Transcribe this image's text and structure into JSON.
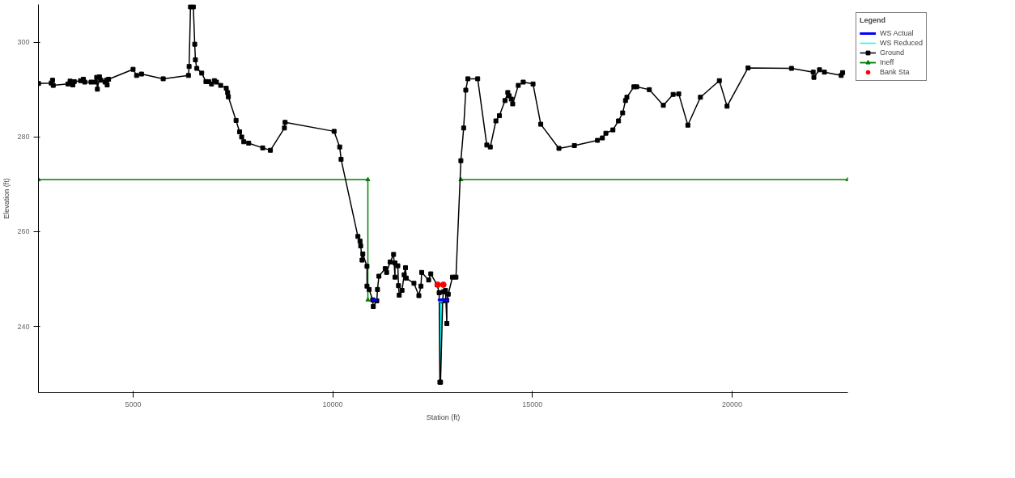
{
  "chart_data": {
    "type": "line",
    "xlabel": "Station (ft)",
    "ylabel": "Elevation (ft)",
    "legend_title": "Legend",
    "legend": "top right",
    "grid": false,
    "xlim": [
      2630,
      22900
    ],
    "ylim": [
      226,
      308
    ],
    "xticks": [
      5000,
      10000,
      15000,
      20000
    ],
    "yticks": [
      240,
      260,
      280,
      300
    ],
    "series": [
      {
        "name": "WS Actual",
        "type": "line",
        "color": "#0000ff",
        "marker": "none",
        "x": [
          10970,
          11110,
          null,
          12630,
          12910
        ],
        "values": [
          245.6,
          245.6,
          null,
          245.6,
          245.6
        ]
      },
      {
        "name": "WS Reduced",
        "type": "line",
        "color": "#00ffff",
        "marker": "none",
        "x": [
          12665,
          12683,
          12700,
          12753
        ],
        "values": [
          245.2,
          245.2,
          245.2,
          245.2
        ],
        "lower": [
          245.2,
          228.2,
          228.2,
          245.2
        ],
        "upper": [
          245.2,
          245.2,
          245.2,
          245.2
        ]
      },
      {
        "name": "Ground",
        "color": "#000000",
        "marker": "square",
        "x": [
          2632,
          2950,
          2983,
          3000,
          3369,
          3422,
          3492,
          3527,
          3685,
          3755,
          3790,
          3948,
          4053,
          4088,
          4106,
          4158,
          4193,
          4299,
          4334,
          4351,
          4386,
          5000,
          5088,
          5210,
          5754,
          6386,
          6403,
          6438,
          6509,
          6544,
          6561,
          6596,
          6719,
          6824,
          6895,
          6965,
          7035,
          7088,
          7193,
          7333,
          7368,
          7386,
          7579,
          7667,
          7719,
          7772,
          7895,
          8246,
          8439,
          8790,
          8807,
          10034,
          10174,
          10209,
          10630,
          10683,
          10700,
          10735,
          10753,
          10858,
          10858,
          10911,
          11000,
          11016,
          11104,
          11121,
          11156,
          11314,
          11349,
          11437,
          11524,
          11559,
          11559,
          11630,
          11647,
          11665,
          11735,
          11788,
          11823,
          11840,
          12034,
          12157,
          12209,
          12227,
          12402,
          12455,
          12613,
          12665,
          12683,
          12700,
          12753,
          12770,
          12823,
          12858,
          12858,
          12893,
          12998,
          13086,
          13209,
          13279,
          13332,
          13384,
          13630,
          13858,
          13946,
          14086,
          14174,
          14314,
          14384,
          14419,
          14472,
          14507,
          14647,
          14770,
          15016,
          15209,
          15665,
          16051,
          16630,
          16753,
          16840,
          17016,
          17156,
          17261,
          17331,
          17366,
          17542,
          17612,
          17928,
          18279,
          18525,
          18665,
          18893,
          19208,
          19682,
          19875,
          20401,
          21488,
          22032,
          22049,
          22190,
          22313,
          22734,
          22769
        ],
        "values": [
          291.3,
          291.4,
          292.0,
          290.9,
          291.2,
          291.8,
          291.0,
          291.7,
          291.9,
          292.2,
          291.6,
          291.6,
          291.6,
          292.6,
          290.1,
          292.7,
          292.0,
          291.6,
          292.0,
          291.0,
          292.2,
          294.3,
          293.0,
          293.3,
          292.3,
          293.0,
          294.9,
          307.5,
          307.5,
          299.6,
          296.3,
          294.5,
          293.5,
          291.7,
          291.7,
          291.2,
          291.9,
          291.6,
          290.9,
          290.3,
          289.4,
          288.5,
          283.5,
          281.1,
          280.0,
          279.0,
          278.7,
          277.7,
          277.2,
          281.9,
          283.1,
          281.2,
          277.9,
          275.3,
          259.0,
          258.0,
          257.0,
          254.0,
          255.3,
          252.7,
          248.5,
          247.8,
          245.6,
          244.2,
          245.4,
          247.8,
          250.6,
          252.2,
          251.4,
          253.6,
          255.2,
          250.4,
          253.4,
          252.8,
          248.6,
          246.6,
          247.6,
          250.9,
          252.4,
          250.2,
          249.1,
          246.5,
          248.5,
          251.4,
          249.8,
          251.1,
          248.8,
          247.1,
          228.2,
          228.2,
          245.4,
          247.3,
          247.6,
          240.6,
          245.5,
          246.8,
          250.4,
          250.4,
          275.0,
          281.9,
          289.9,
          292.3,
          292.3,
          278.3,
          277.9,
          283.4,
          284.5,
          287.7,
          289.4,
          288.7,
          288.0,
          287.0,
          290.9,
          291.6,
          291.2,
          282.7,
          277.6,
          278.2,
          279.3,
          279.8,
          280.8,
          281.5,
          283.4,
          285.1,
          287.7,
          288.4,
          290.6,
          290.6,
          290.0,
          286.7,
          289.0,
          289.1,
          282.5,
          288.4,
          291.9,
          286.5,
          294.6,
          294.5,
          293.7,
          292.6,
          294.2,
          293.7,
          293.0,
          293.6
        ]
      },
      {
        "name": "Ineff",
        "type": "line",
        "color": "#008000",
        "marker": "triangle",
        "x": [
          2630,
          10880,
          10880,
          null,
          13209,
          22900
        ],
        "values": [
          271.0,
          271.0,
          245.6,
          null,
          271.0,
          271.0
        ]
      },
      {
        "name": "Bank Sta",
        "type": "scatter",
        "color": "#ff0000",
        "marker": "circle",
        "x": [
          12630,
          12770
        ],
        "values": [
          248.8,
          248.8
        ]
      }
    ]
  }
}
